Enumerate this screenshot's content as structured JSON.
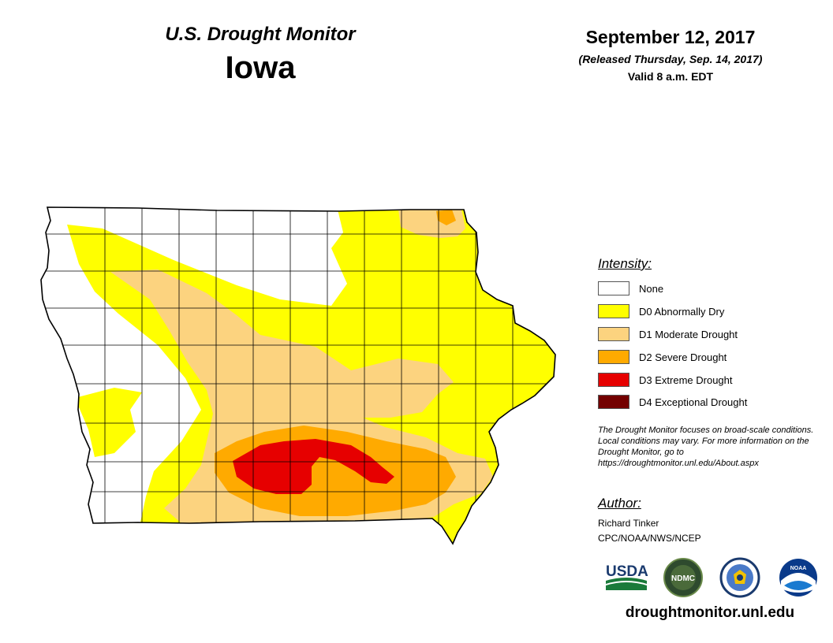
{
  "header": {
    "title": "U.S. Drought Monitor",
    "state": "Iowa",
    "date": "September 12, 2017",
    "released": "(Released Thursday, Sep. 14, 2017)",
    "valid": "Valid 8 a.m. EDT"
  },
  "legend": {
    "heading": "Intensity:",
    "items": [
      {
        "label": "None",
        "color": "#ffffff"
      },
      {
        "label": "D0 Abnormally Dry",
        "color": "#ffff00"
      },
      {
        "label": "D1 Moderate Drought",
        "color": "#fcd37f"
      },
      {
        "label": "D2 Severe Drought",
        "color": "#ffaa00"
      },
      {
        "label": "D3 Extreme Drought",
        "color": "#e60000"
      },
      {
        "label": "D4 Exceptional Drought",
        "color": "#730000"
      }
    ]
  },
  "note": "The Drought Monitor focuses on broad-scale conditions. Local conditions may vary. For more information on the Drought Monitor, go to https://droughtmonitor.unl.edu/About.aspx",
  "author": {
    "heading": "Author:",
    "name": "Richard Tinker",
    "org": "CPC/NOAA/NWS/NCEP"
  },
  "logos": [
    {
      "name": "usda-logo",
      "text": "USDA"
    },
    {
      "name": "ndmc-logo",
      "text": "NDMC"
    },
    {
      "name": "doc-logo",
      "text": ""
    },
    {
      "name": "noaa-logo",
      "text": "NOAA"
    }
  ],
  "url": "droughtmonitor.unl.edu"
}
